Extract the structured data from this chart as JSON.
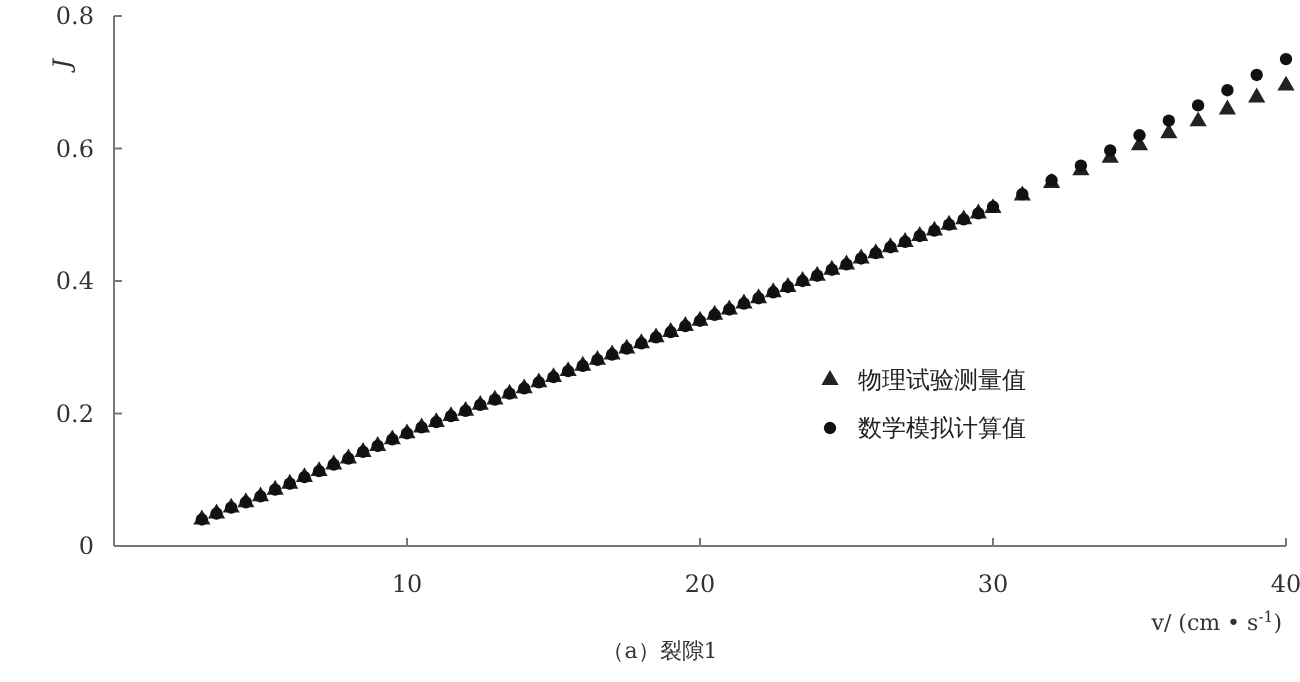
{
  "chart_data": {
    "type": "scatter",
    "xlabel": "v/ (cm • s$^{-1}$)",
    "ylabel": "J",
    "annotations": [
      "（a）裂隙1"
    ],
    "xlim": [
      0,
      40
    ],
    "xticks": [
      10,
      20,
      30,
      40
    ],
    "ylim": [
      0,
      0.8
    ],
    "yticks": [
      0,
      0.2,
      0.4,
      0.6,
      0.8
    ],
    "grid": false,
    "legend": "right",
    "series": [
      {
        "name": "物理试验测量值",
        "color": "#222222",
        "marker": "triangle",
        "x": [
          3,
          3.5,
          4,
          4.5,
          5,
          5.5,
          6,
          6.5,
          7,
          7.5,
          8,
          8.5,
          9,
          9.5,
          10,
          10.5,
          11,
          11.5,
          12,
          12.5,
          13,
          13.5,
          14,
          14.5,
          15,
          15.5,
          16,
          16.5,
          17,
          17.5,
          18,
          18.5,
          19,
          19.5,
          20,
          20.5,
          21,
          21.5,
          22,
          22.5,
          23,
          23.5,
          24,
          24.5,
          25,
          25.5,
          26,
          26.5,
          27,
          27.5,
          28,
          28.5,
          29,
          29.5,
          30,
          31,
          32,
          33,
          34,
          35,
          36,
          37,
          38,
          39,
          40
        ],
        "values": [
          0.04,
          0.049,
          0.058,
          0.066,
          0.075,
          0.085,
          0.094,
          0.104,
          0.113,
          0.123,
          0.132,
          0.142,
          0.151,
          0.161,
          0.17,
          0.179,
          0.187,
          0.196,
          0.204,
          0.213,
          0.221,
          0.23,
          0.238,
          0.247,
          0.255,
          0.264,
          0.272,
          0.281,
          0.289,
          0.298,
          0.306,
          0.315,
          0.323,
          0.332,
          0.34,
          0.349,
          0.357,
          0.366,
          0.374,
          0.383,
          0.391,
          0.4,
          0.408,
          0.417,
          0.425,
          0.434,
          0.442,
          0.451,
          0.459,
          0.468,
          0.476,
          0.485,
          0.493,
          0.502,
          0.51,
          0.529,
          0.548,
          0.567,
          0.586,
          0.605,
          0.623,
          0.641,
          0.659,
          0.677,
          0.695
        ]
      },
      {
        "name": "数学模拟计算值",
        "color": "#111111",
        "marker": "circle",
        "x": [
          3,
          3.5,
          4,
          4.5,
          5,
          5.5,
          6,
          6.5,
          7,
          7.5,
          8,
          8.5,
          9,
          9.5,
          10,
          10.5,
          11,
          11.5,
          12,
          12.5,
          13,
          13.5,
          14,
          14.5,
          15,
          15.5,
          16,
          16.5,
          17,
          17.5,
          18,
          18.5,
          19,
          19.5,
          20,
          20.5,
          21,
          21.5,
          22,
          22.5,
          23,
          23.5,
          24,
          24.5,
          25,
          25.5,
          26,
          26.5,
          27,
          27.5,
          28,
          28.5,
          29,
          29.5,
          30,
          31,
          32,
          33,
          34,
          35,
          36,
          37,
          38,
          39,
          40
        ],
        "values": [
          0.04,
          0.049,
          0.058,
          0.066,
          0.075,
          0.085,
          0.094,
          0.104,
          0.113,
          0.123,
          0.132,
          0.142,
          0.151,
          0.161,
          0.17,
          0.179,
          0.187,
          0.196,
          0.204,
          0.213,
          0.221,
          0.23,
          0.238,
          0.247,
          0.255,
          0.264,
          0.272,
          0.281,
          0.289,
          0.298,
          0.306,
          0.315,
          0.323,
          0.332,
          0.34,
          0.349,
          0.357,
          0.366,
          0.374,
          0.383,
          0.391,
          0.4,
          0.408,
          0.417,
          0.425,
          0.434,
          0.442,
          0.451,
          0.459,
          0.468,
          0.476,
          0.485,
          0.493,
          0.502,
          0.512,
          0.531,
          0.552,
          0.574,
          0.597,
          0.62,
          0.642,
          0.665,
          0.688,
          0.711,
          0.735
        ]
      }
    ]
  }
}
